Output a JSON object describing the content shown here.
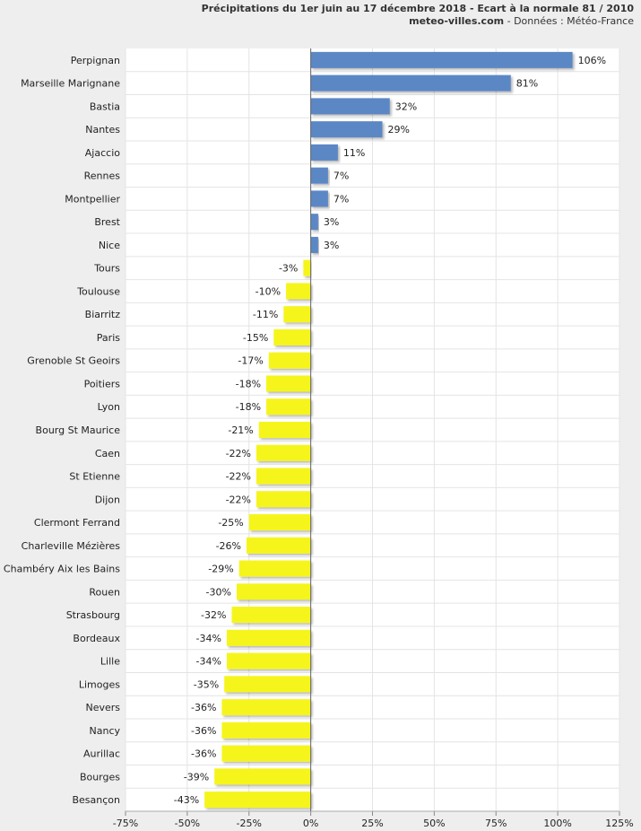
{
  "header": {
    "title": "Précipitations du 1er juin au 17 décembre 2018 - Ecart à la normale 81 / 2010",
    "site": "meteo-villes.com",
    "source": " - Données : Météo-France"
  },
  "colors": {
    "positive": "#5b87c5",
    "negative": "#f5f51f",
    "plot_bg": "#ffffff",
    "grid": "#e4e4e4"
  },
  "chart_data": {
    "type": "bar",
    "orientation": "horizontal",
    "title": "Précipitations du 1er juin au 17 décembre 2018 - Ecart à la normale 81 / 2010",
    "categories": [
      "Perpignan",
      "Marseille Marignane",
      "Bastia",
      "Nantes",
      "Ajaccio",
      "Rennes",
      "Montpellier",
      "Brest",
      "Nice",
      "Tours",
      "Toulouse",
      "Biarritz",
      "Paris",
      "Grenoble St Geoirs",
      "Poitiers",
      "Lyon",
      "Bourg St Maurice",
      "Caen",
      "St Etienne",
      "Dijon",
      "Clermont Ferrand",
      "Charleville Mézières",
      "Chambéry Aix les Bains",
      "Rouen",
      "Strasbourg",
      "Bordeaux",
      "Lille",
      "Limoges",
      "Nevers",
      "Nancy",
      "Aurillac",
      "Bourges",
      "Besançon"
    ],
    "values": [
      106,
      81,
      32,
      29,
      11,
      7,
      7,
      3,
      3,
      -3,
      -10,
      -11,
      -15,
      -17,
      -18,
      -18,
      -21,
      -22,
      -22,
      -22,
      -25,
      -26,
      -29,
      -30,
      -32,
      -34,
      -34,
      -35,
      -36,
      -36,
      -36,
      -39,
      -43
    ],
    "value_labels": [
      "106%",
      "81%",
      "32%",
      "29%",
      "11%",
      "7%",
      "7%",
      "3%",
      "3%",
      "-3%",
      "-10%",
      "-11%",
      "-15%",
      "-17%",
      "-18%",
      "-18%",
      "-21%",
      "-22%",
      "-22%",
      "-22%",
      "-25%",
      "-26%",
      "-29%",
      "-30%",
      "-32%",
      "-34%",
      "-34%",
      "-35%",
      "-36%",
      "-36%",
      "-36%",
      "-39%",
      "-43%"
    ],
    "x_ticks": [
      -75,
      -50,
      -25,
      0,
      25,
      50,
      75,
      100,
      125
    ],
    "x_tick_labels": [
      "-75%",
      "-50%",
      "-25%",
      "0%",
      "25%",
      "50%",
      "75%",
      "100%",
      "125%"
    ],
    "xlim": [
      -75,
      125
    ],
    "xlabel": "",
    "ylabel": "",
    "grid": true
  }
}
